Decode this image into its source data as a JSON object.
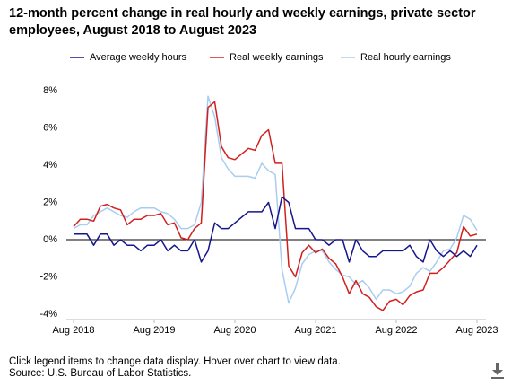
{
  "chart_data": {
    "type": "line",
    "title": "12-month percent change in real hourly and weekly earnings, private sector employees, August 2018 to August 2023",
    "categories": [
      "Aug 2018",
      null,
      null,
      null,
      null,
      null,
      null,
      null,
      null,
      null,
      null,
      null,
      "Aug 2019",
      null,
      null,
      null,
      null,
      null,
      null,
      null,
      null,
      null,
      null,
      null,
      "Aug 2020",
      null,
      null,
      null,
      null,
      null,
      null,
      null,
      null,
      null,
      null,
      null,
      "Aug 2021",
      null,
      null,
      null,
      null,
      null,
      null,
      null,
      null,
      null,
      null,
      null,
      "Aug 2022",
      null,
      null,
      null,
      null,
      null,
      null,
      null,
      null,
      null,
      null,
      null,
      "Aug 2023"
    ],
    "series": [
      {
        "name": "Average weekly hours",
        "color": "#15158c",
        "values": [
          0.3,
          0.3,
          0.3,
          -0.3,
          0.3,
          0.3,
          -0.3,
          0,
          -0.3,
          -0.3,
          -0.6,
          -0.3,
          -0.3,
          0,
          -0.6,
          -0.3,
          -0.6,
          -0.6,
          0,
          -1.2,
          -0.6,
          0.9,
          0.6,
          0.6,
          0.9,
          1.2,
          1.5,
          1.5,
          1.5,
          2.0,
          0.6,
          2.3,
          2.0,
          0.6,
          0.6,
          0.6,
          0,
          0,
          -0.3,
          0,
          0,
          -1.2,
          0,
          -0.6,
          -0.9,
          -0.9,
          -0.6,
          -0.6,
          -0.6,
          -0.6,
          -0.3,
          -0.9,
          -1.2,
          0,
          -0.6,
          -0.9,
          -0.6,
          -0.9,
          -0.6,
          -0.9,
          -0.3
        ]
      },
      {
        "name": "Real weekly earnings",
        "color": "#d11f1f",
        "values": [
          0.7,
          1.1,
          1.1,
          1.0,
          1.8,
          1.9,
          1.7,
          1.6,
          0.8,
          1.1,
          1.1,
          1.3,
          1.3,
          1.4,
          0.8,
          0.9,
          0.1,
          0,
          0.6,
          0.9,
          7.1,
          7.4,
          5.0,
          4.4,
          4.3,
          4.6,
          4.9,
          4.8,
          5.6,
          5.9,
          4.1,
          4.1,
          -1.4,
          -2.0,
          -0.7,
          -0.3,
          -0.7,
          -0.5,
          -1.0,
          -1.3,
          -2.0,
          -2.9,
          -2.2,
          -2.9,
          -3.1,
          -3.6,
          -3.8,
          -3.3,
          -3.2,
          -3.5,
          -3.0,
          -2.8,
          -2.7,
          -1.8,
          -1.8,
          -1.5,
          -1.1,
          -0.7,
          0.7,
          0.2,
          0.3
        ]
      },
      {
        "name": "Real hourly earnings",
        "color": "#a9cdef",
        "values": [
          0.6,
          0.8,
          0.8,
          1.3,
          1.5,
          1.7,
          1.5,
          1.3,
          1.2,
          1.5,
          1.7,
          1.7,
          1.7,
          1.5,
          1.4,
          1.1,
          0.6,
          0.6,
          0.8,
          2.0,
          7.7,
          6.6,
          4.4,
          3.8,
          3.4,
          3.4,
          3.4,
          3.3,
          4.1,
          3.7,
          3.5,
          -1.6,
          -3.4,
          -2.6,
          -1.3,
          -0.8,
          -0.6,
          -0.6,
          -1.2,
          -1.6,
          -1.9,
          -2.0,
          -2.4,
          -2.2,
          -2.6,
          -3.2,
          -2.7,
          -2.7,
          -2.9,
          -2.8,
          -2.5,
          -1.8,
          -1.5,
          -1.7,
          -1.2,
          -0.6,
          -0.5,
          0.1,
          1.3,
          1.1,
          0.5
        ]
      }
    ],
    "ylim": [
      -4,
      8
    ],
    "yticks": [
      {
        "value": -4,
        "label": "-4%"
      },
      {
        "value": -2,
        "label": "-2%"
      },
      {
        "value": 0,
        "label": "0%"
      },
      {
        "value": 2,
        "label": "2%"
      },
      {
        "value": 4,
        "label": "4%"
      },
      {
        "value": 6,
        "label": "6%"
      },
      {
        "value": 8,
        "label": "8%"
      }
    ],
    "grid": false,
    "legend": "top",
    "notes": [
      "Click legend items to change data display. Hover over chart to view data.",
      "Source: U.S. Bureau of Labor Statistics."
    ]
  }
}
